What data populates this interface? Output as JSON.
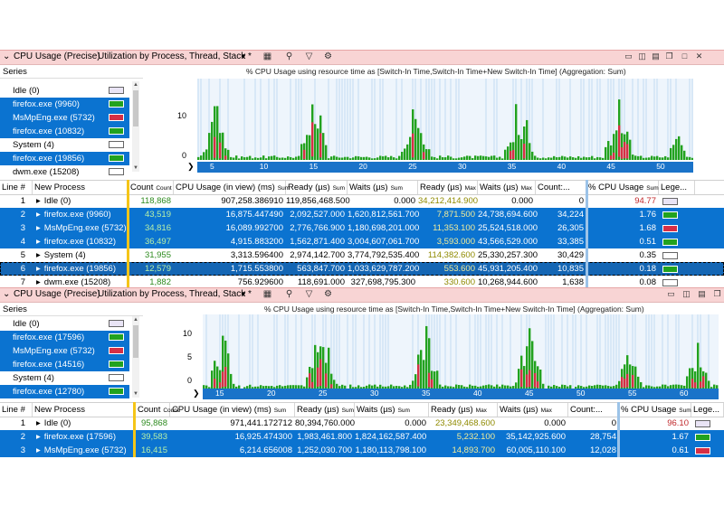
{
  "colors": {
    "selection": "#0b73d0",
    "green": "#22a21f",
    "red": "#d62f45",
    "axis": "#1a73c9",
    "titlebar": "#f8d4d4"
  },
  "top": {
    "title": "CPU Usage (Precise)",
    "preset": "Utilization by Process, Thread, Stack *",
    "toolbar_icons": [
      "chart-type-icon",
      "search-icon",
      "filter-icon",
      "settings-icon"
    ],
    "window_icons": [
      "graph-only-icon",
      "graph-and-table-icon",
      "table-only-icon",
      "restore-icon",
      "maximize-icon",
      "close-icon"
    ],
    "series_header": "Series",
    "series": [
      {
        "label": "Idle (0)",
        "selected": false,
        "color": "#e9e4f5"
      },
      {
        "label": "firefox.exe (9960)",
        "selected": true,
        "color": "#22a21f"
      },
      {
        "label": "MsMpEng.exe (5732)",
        "selected": true,
        "color": "#d62f45"
      },
      {
        "label": "firefox.exe (10832)",
        "selected": true,
        "color": "#22a21f"
      },
      {
        "label": "System (4)",
        "selected": false,
        "color": "#ffffff"
      },
      {
        "label": "firefox.exe (19856)",
        "selected": true,
        "color": "#22a21f"
      },
      {
        "label": "dwm.exe (15208)",
        "selected": false,
        "color": "#ffffff"
      }
    ],
    "chart_title": "% CPU Usage using resource time as [Switch-In Time,Switch-In Time+New Switch-In Time] (Aggregation: Sum)",
    "y_ticks": [
      "10",
      "0"
    ],
    "x_ticks": [
      "5",
      "10",
      "15",
      "20",
      "25",
      "30",
      "35",
      "40",
      "45",
      "50"
    ],
    "columns": [
      {
        "label": "Line #",
        "sub": ""
      },
      {
        "label": "New Process",
        "sub": ""
      },
      {
        "label": "Count",
        "sub": "Count"
      },
      {
        "label": "CPU Usage (in view) (ms)",
        "sub": "Sum"
      },
      {
        "label": "Ready (µs)",
        "sub": "Sum"
      },
      {
        "label": "Waits (µs)",
        "sub": "Sum"
      },
      {
        "label": "Ready (µs)",
        "sub": "Max"
      },
      {
        "label": "Waits (µs)",
        "sub": "Max"
      },
      {
        "label": "Count:...",
        "sub": ""
      },
      {
        "label": "% CPU Usage",
        "sub": "Sum"
      },
      {
        "label": "Lege...",
        "sub": ""
      }
    ],
    "rows": [
      {
        "line": "1",
        "expander": "▸",
        "process": "Idle (0)",
        "count": "118,868",
        "cpu": "907,258.386910",
        "ready": "119,856,468.500",
        "waits": "0.000",
        "ready_max": "34,212,414.900",
        "waits_max": "0.000",
        "count2": "0",
        "pct": "94.77",
        "selected": false,
        "focus": false,
        "legend": "#e9e4f5"
      },
      {
        "line": "2",
        "expander": "▸",
        "process": "firefox.exe (9960)",
        "count": "43,519",
        "cpu": "16,875.447490",
        "ready": "2,092,527.000",
        "waits": "1,620,812,561.700",
        "ready_max": "7,871.500",
        "waits_max": "24,738,694.600",
        "count2": "34,224",
        "pct": "1.76",
        "selected": true,
        "focus": false,
        "legend": "#22a21f"
      },
      {
        "line": "3",
        "expander": "▸",
        "process": "MsMpEng.exe (5732)",
        "count": "34,816",
        "cpu": "16,089.992700",
        "ready": "2,776,766.900",
        "waits": "1,180,698,201.000",
        "ready_max": "11,353.100",
        "waits_max": "25,524,518.000",
        "count2": "26,305",
        "pct": "1.68",
        "selected": true,
        "focus": false,
        "legend": "#d62f45"
      },
      {
        "line": "4",
        "expander": "▸",
        "process": "firefox.exe (10832)",
        "count": "36,497",
        "cpu": "4,915.883200",
        "ready": "1,562,871.400",
        "waits": "3,004,607,061.700",
        "ready_max": "3,593.000",
        "waits_max": "43,566,529.000",
        "count2": "33,385",
        "pct": "0.51",
        "selected": true,
        "focus": false,
        "legend": "#22a21f"
      },
      {
        "line": "5",
        "expander": "▸",
        "process": "System (4)",
        "count": "31,955",
        "cpu": "3,313.596400",
        "ready": "2,974,142.700",
        "waits": "3,774,792,535.400",
        "ready_max": "114,382.600",
        "waits_max": "25,330,257.300",
        "count2": "30,429",
        "pct": "0.35",
        "selected": false,
        "focus": false,
        "legend": "#ffffff"
      },
      {
        "line": "6",
        "expander": "▸",
        "process": "firefox.exe (19856)",
        "count": "12,579",
        "cpu": "1,715.553800",
        "ready": "563,847.700",
        "waits": "1,033,629,787.200",
        "ready_max": "553.600",
        "waits_max": "45,931,205.400",
        "count2": "10,835",
        "pct": "0.18",
        "selected": true,
        "focus": true,
        "legend": "#22a21f"
      },
      {
        "line": "7",
        "expander": "▸",
        "process": "dwm.exe (15208)",
        "count": "1,882",
        "cpu": "756.929600",
        "ready": "118,691.000",
        "waits": "327,698,795.300",
        "ready_max": "330.600",
        "waits_max": "10,268,944.600",
        "count2": "1,638",
        "pct": "0.08",
        "selected": false,
        "focus": false,
        "legend": "#ffffff"
      }
    ]
  },
  "bottom": {
    "title": "CPU Usage (Precise)",
    "preset": "Utilization by Process, Thread, Stack *",
    "series_header": "Series",
    "series": [
      {
        "label": "Idle (0)",
        "selected": false,
        "color": "#e9e4f5"
      },
      {
        "label": "firefox.exe (17596)",
        "selected": true,
        "color": "#22a21f"
      },
      {
        "label": "MsMpEng.exe (5732)",
        "selected": true,
        "color": "#d62f45"
      },
      {
        "label": "firefox.exe (14516)",
        "selected": true,
        "color": "#22a21f"
      },
      {
        "label": "System (4)",
        "selected": false,
        "color": "#ffffff"
      },
      {
        "label": "firefox.exe (12780)",
        "selected": true,
        "color": "#22a21f"
      }
    ],
    "chart_title": "% CPU Usage using resource time as [Switch-In Time,Switch-In Time+New Switch-In Time] (Aggregation: Sum)",
    "y_ticks": [
      "10",
      "5",
      "0"
    ],
    "x_ticks": [
      "15",
      "20",
      "25",
      "30",
      "35",
      "40",
      "45",
      "50",
      "55",
      "60"
    ],
    "columns": [
      {
        "label": "Line #",
        "sub": ""
      },
      {
        "label": "New Process",
        "sub": ""
      },
      {
        "label": "Count",
        "sub": "Count"
      },
      {
        "label": "CPU Usage (in view) (ms)",
        "sub": "Sum"
      },
      {
        "label": "Ready (µs)",
        "sub": "Sum"
      },
      {
        "label": "Waits (µs)",
        "sub": "Sum"
      },
      {
        "label": "Ready (µs)",
        "sub": "Max"
      },
      {
        "label": "Waits (µs)",
        "sub": "Max"
      },
      {
        "label": "Count:...",
        "sub": ""
      },
      {
        "label": "% CPU Usage",
        "sub": "Sum"
      },
      {
        "label": "Lege...",
        "sub": ""
      }
    ],
    "rows": [
      {
        "line": "1",
        "expander": "▸",
        "process": "Idle (0)",
        "count": "95,868",
        "cpu": "971,441.172712",
        "ready": "80,394,760.000",
        "waits": "0.000",
        "ready_max": "23,349,468.600",
        "waits_max": "0.000",
        "count2": "0",
        "pct": "96.10",
        "selected": false,
        "focus": false,
        "legend": "#e9e4f5"
      },
      {
        "line": "2",
        "expander": "▸",
        "process": "firefox.exe (17596)",
        "count": "39,583",
        "cpu": "16,925.474300",
        "ready": "1,983,461.800",
        "waits": "1,824,162,587.400",
        "ready_max": "5,232.100",
        "waits_max": "35,142,925.600",
        "count2": "28,754",
        "pct": "1.67",
        "selected": true,
        "focus": false,
        "legend": "#22a21f"
      },
      {
        "line": "3",
        "expander": "▸",
        "process": "MsMpEng.exe (5732)",
        "count": "16,415",
        "cpu": "6,214.656008",
        "ready": "1,252,030.700",
        "waits": "1,180,113,798.100",
        "ready_max": "14,893.700",
        "waits_max": "60,005,110.100",
        "count2": "12,028",
        "pct": "0.61",
        "selected": true,
        "focus": false,
        "legend": "#d62f45"
      }
    ]
  }
}
